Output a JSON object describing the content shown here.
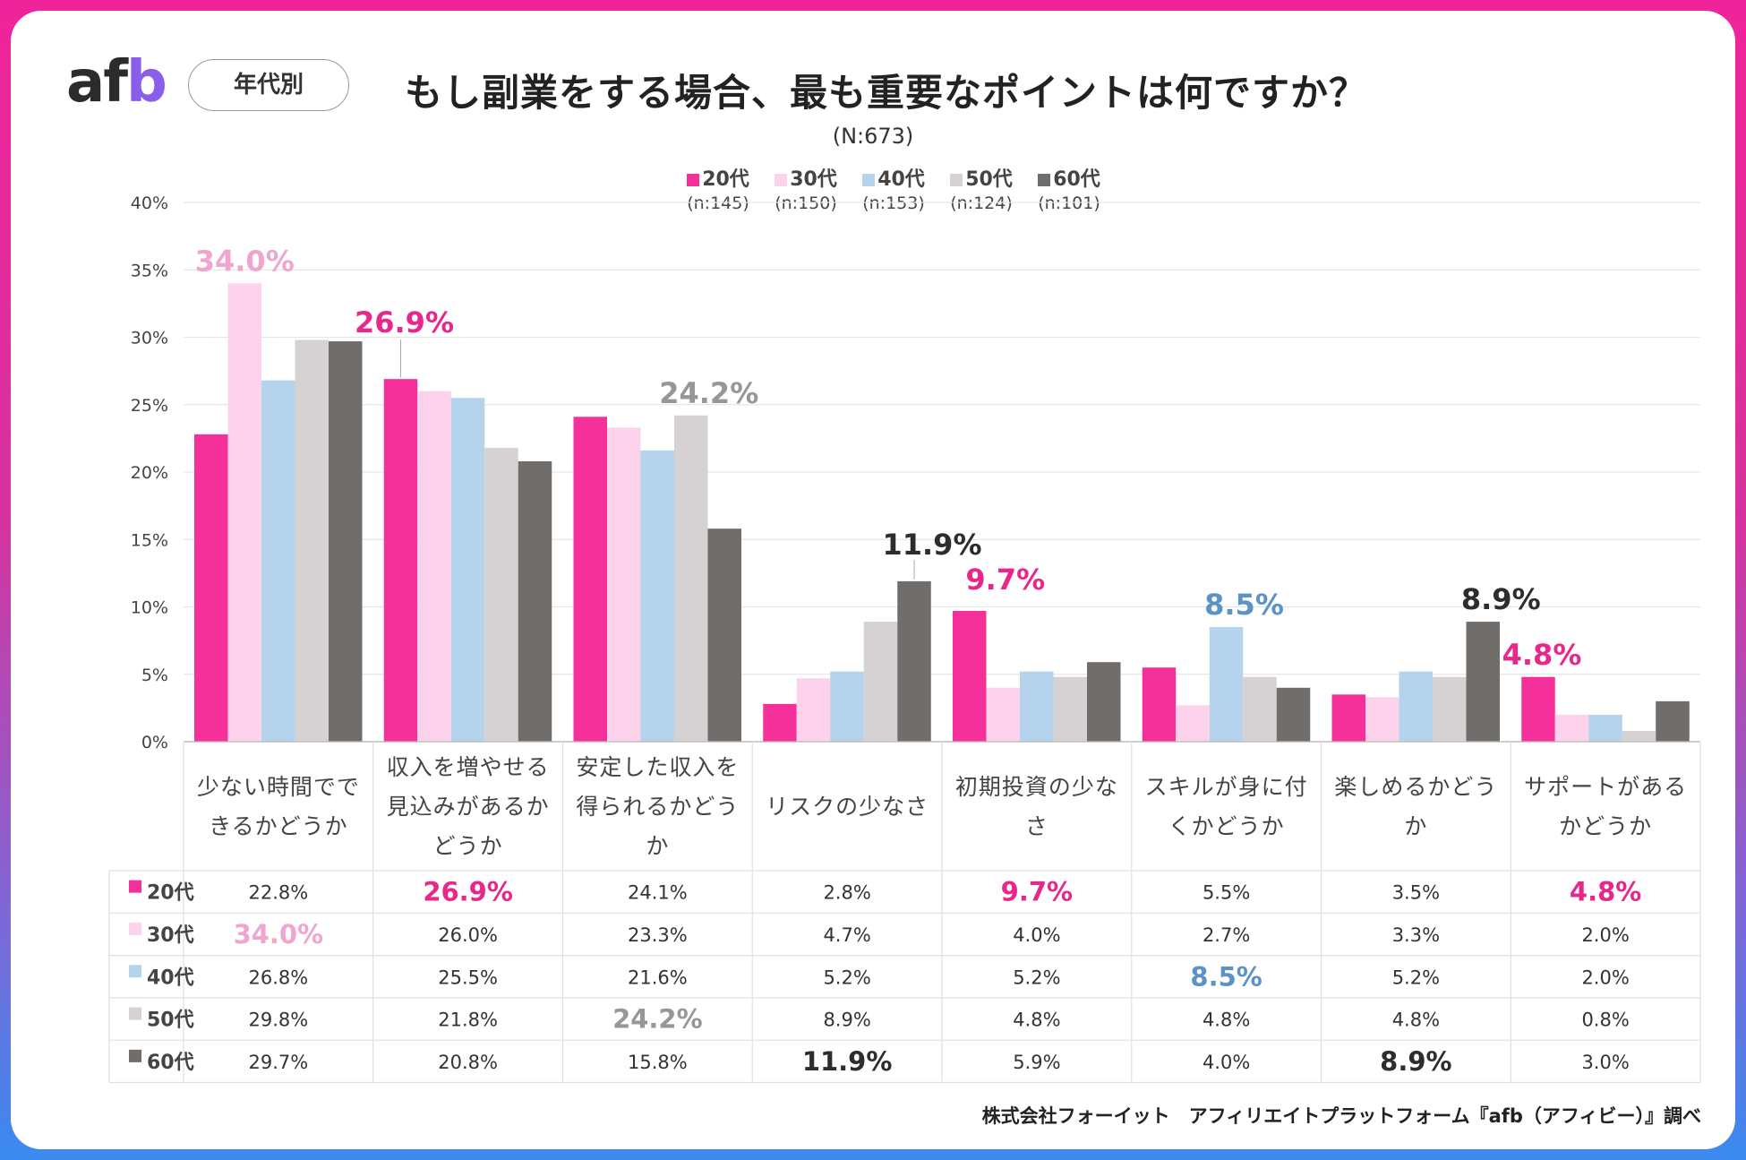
{
  "header": {
    "logo_prefix": "af",
    "logo_suffix": "b",
    "badge": "年代別",
    "title": "もし副業をする場合、最も重要なポイントは何ですか？",
    "subtitle": "(N:673)"
  },
  "footer": "株式会社フォーイット　アフィリエイトプラットフォーム『afb（アフィビー）』調べ",
  "colors": {
    "20代": "#f5309a",
    "30代": "#fcd3ea",
    "40代": "#b5d3ec",
    "50代": "#d6d2d3",
    "60代": "#716d6a",
    "highlight_20代": "#e8278c",
    "highlight_30代": "#f0a5cf",
    "highlight_40代": "#5b93c6",
    "highlight_50代": "#9a9696",
    "highlight_60代": "#2d2d2d"
  },
  "legend": [
    {
      "name": "20代",
      "n": "(n:145)"
    },
    {
      "name": "30代",
      "n": "(n:150)"
    },
    {
      "name": "40代",
      "n": "(n:153)"
    },
    {
      "name": "50代",
      "n": "(n:124)"
    },
    {
      "name": "60代",
      "n": "(n:101)"
    }
  ],
  "chart_data": {
    "type": "bar",
    "ylim": [
      0,
      40
    ],
    "y_ticks": [
      "0%",
      "5%",
      "10%",
      "15%",
      "20%",
      "25%",
      "30%",
      "35%",
      "40%"
    ],
    "grid": true,
    "legend_position": "top-center",
    "categories": [
      [
        "少ない時間でで",
        "きるかどうか"
      ],
      [
        "収入を増やせる",
        "見込みがあるか",
        "どうか"
      ],
      [
        "安定した収入を",
        "得られるかどう",
        "か"
      ],
      [
        "リスクの少なさ"
      ],
      [
        "初期投資の少な",
        "さ"
      ],
      [
        "スキルが身に付",
        "くかどうか"
      ],
      [
        "楽しめるかどう",
        "か"
      ],
      [
        "サポートがある",
        "かどうか"
      ]
    ],
    "series": [
      {
        "name": "20代",
        "values": [
          22.8,
          26.9,
          24.1,
          2.8,
          9.7,
          5.5,
          3.5,
          4.8
        ]
      },
      {
        "name": "30代",
        "values": [
          34.0,
          26.0,
          23.3,
          4.7,
          4.0,
          2.7,
          3.3,
          2.0
        ]
      },
      {
        "name": "40代",
        "values": [
          26.8,
          25.5,
          21.6,
          5.2,
          5.2,
          8.5,
          5.2,
          2.0
        ]
      },
      {
        "name": "50代",
        "values": [
          29.8,
          21.8,
          24.2,
          8.9,
          4.8,
          4.8,
          4.8,
          0.8
        ]
      },
      {
        "name": "60代",
        "values": [
          29.7,
          20.8,
          15.8,
          11.9,
          5.9,
          4.0,
          8.9,
          3.0
        ]
      }
    ],
    "table_values": [
      [
        "22.8%",
        "26.9%",
        "24.1%",
        "2.8%",
        "9.7%",
        "5.5%",
        "3.5%",
        "4.8%"
      ],
      [
        "34.0%",
        "26.0%",
        "23.3%",
        "4.7%",
        "4.0%",
        "2.7%",
        "3.3%",
        "2.0%"
      ],
      [
        "26.8%",
        "25.5%",
        "21.6%",
        "5.2%",
        "5.2%",
        "8.5%",
        "5.2%",
        "2.0%"
      ],
      [
        "29.8%",
        "21.8%",
        "24.2%",
        "8.9%",
        "4.8%",
        "4.8%",
        "4.8%",
        "0.8%"
      ],
      [
        "29.7%",
        "20.8%",
        "15.8%",
        "11.9%",
        "5.9%",
        "4.0%",
        "8.9%",
        "3.0%"
      ]
    ],
    "annotations": [
      {
        "category": 0,
        "series": 1,
        "label": "34.0%"
      },
      {
        "category": 1,
        "series": 0,
        "label": "26.9%"
      },
      {
        "category": 2,
        "series": 3,
        "label": "24.2%"
      },
      {
        "category": 3,
        "series": 4,
        "label": "11.9%"
      },
      {
        "category": 4,
        "series": 0,
        "label": "9.7%"
      },
      {
        "category": 5,
        "series": 2,
        "label": "8.5%"
      },
      {
        "category": 6,
        "series": 4,
        "label": "8.9%"
      },
      {
        "category": 7,
        "series": 0,
        "label": "4.8%"
      }
    ]
  }
}
